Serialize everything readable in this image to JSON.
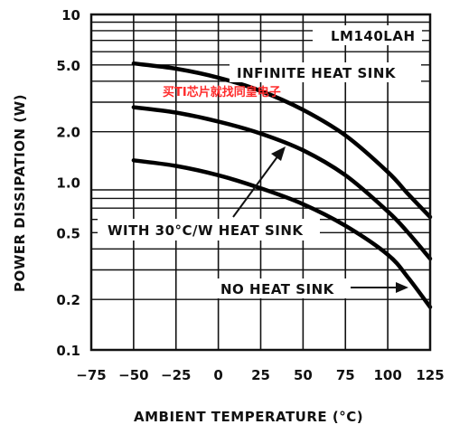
{
  "chart_data": {
    "type": "line",
    "title": "",
    "xlabel": "AMBIENT TEMPERATURE (°C)",
    "ylabel": "POWER DISSIPATION (W)",
    "xlim": [
      -75,
      125
    ],
    "ylim": [
      0.1,
      10
    ],
    "yscale": "log",
    "grid": true,
    "x_ticks": [
      -75,
      -50,
      -25,
      0,
      25,
      50,
      75,
      100,
      125
    ],
    "x_tick_labels": [
      "−75",
      "−50",
      "−25",
      "0",
      "25",
      "50",
      "75",
      "100",
      "125"
    ],
    "y_ticks": [
      0.1,
      0.2,
      0.5,
      1.0,
      2.0,
      5.0,
      10
    ],
    "y_tick_labels": [
      "0.1",
      "0.2",
      "0.5",
      "1.0",
      "2.0",
      "5.0",
      "10"
    ],
    "series": [
      {
        "name": "INFINITE HEAT SINK",
        "x": [
          -50,
          -25,
          0,
          25,
          50,
          75,
          100,
          112,
          125
        ],
        "y": [
          5.1,
          4.75,
          4.2,
          3.5,
          2.7,
          1.9,
          1.15,
          0.85,
          0.62
        ]
      },
      {
        "name": "WITH 30°C/W HEAT SINK",
        "x": [
          -50,
          -25,
          0,
          25,
          50,
          75,
          100,
          112,
          125
        ],
        "y": [
          2.8,
          2.6,
          2.3,
          1.95,
          1.55,
          1.1,
          0.67,
          0.5,
          0.35
        ]
      },
      {
        "name": "NO HEAT SINK",
        "x": [
          -50,
          -25,
          0,
          25,
          50,
          75,
          100,
          112,
          125
        ],
        "y": [
          1.35,
          1.25,
          1.1,
          0.92,
          0.74,
          0.55,
          0.37,
          0.27,
          0.18
        ]
      }
    ],
    "annotations": {
      "device": "LM140LAH",
      "infinite": "INFINITE HEAT SINK",
      "with30": "WITH 30°C/W HEAT SINK",
      "noheat": "NO HEAT SINK"
    },
    "watermark": "买TI芯片就找同皇电子"
  }
}
